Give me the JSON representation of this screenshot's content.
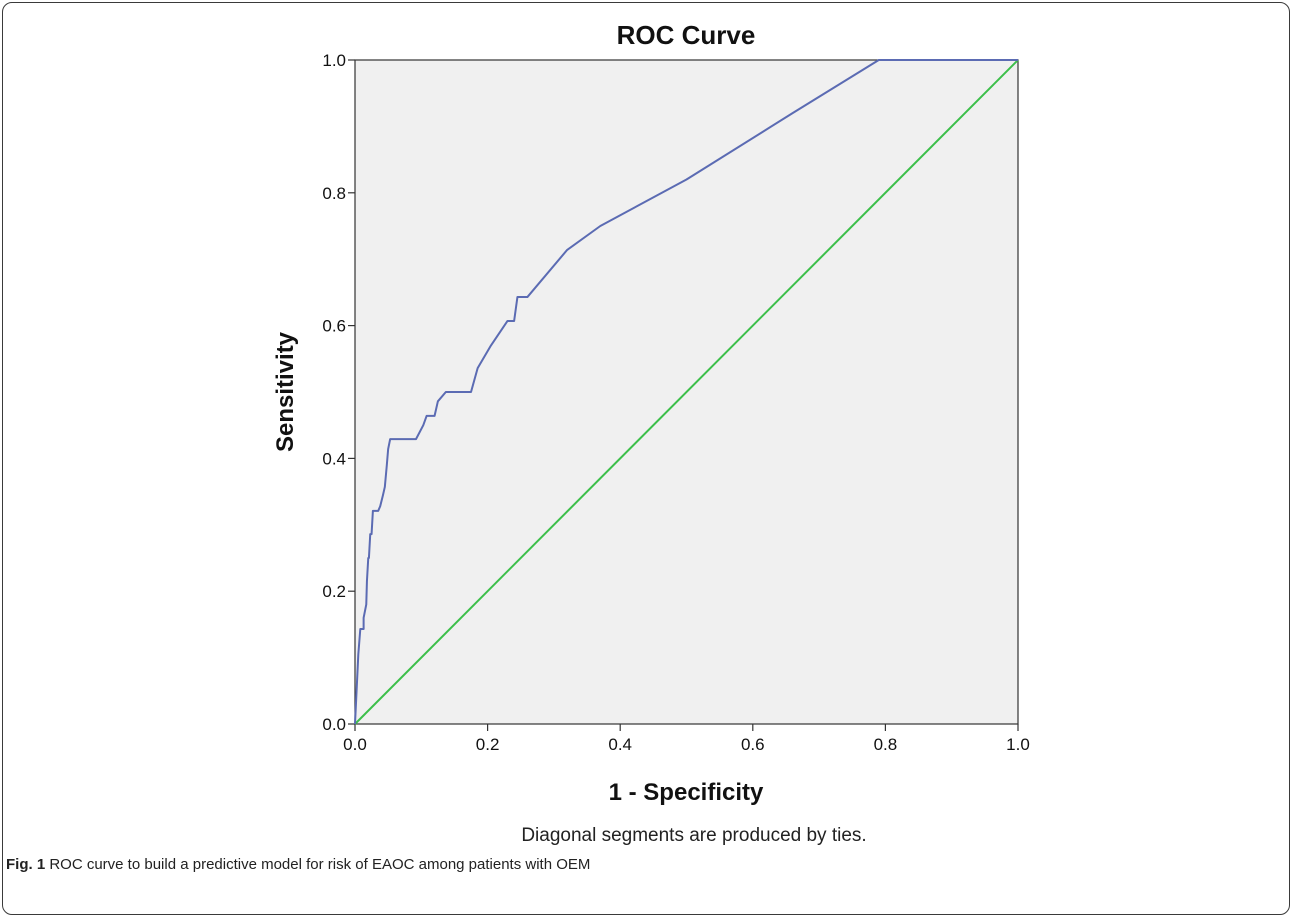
{
  "chart_data": {
    "type": "line",
    "title": "ROC Curve",
    "xlabel": "1 - Specificity",
    "ylabel": "Sensitivity",
    "xlim": [
      0,
      1
    ],
    "ylim": [
      0,
      1
    ],
    "x_ticks": [
      "0.0",
      "0.2",
      "0.4",
      "0.6",
      "0.8",
      "1.0"
    ],
    "y_ticks": [
      "0.0",
      "0.2",
      "0.4",
      "0.6",
      "0.8",
      "1.0"
    ],
    "grid": false,
    "colors": {
      "plot_bg": "#f0f0f0",
      "roc": "#5b6bb3",
      "reference": "#3cbf4a"
    },
    "series": [
      {
        "color": "#5b6bb3",
        "x": [
          0.0,
          0.005,
          0.008,
          0.013,
          0.013,
          0.017,
          0.018,
          0.02,
          0.021,
          0.023,
          0.025,
          0.027,
          0.035,
          0.038,
          0.042,
          0.045,
          0.048,
          0.05,
          0.053,
          0.075,
          0.092,
          0.103,
          0.108,
          0.113,
          0.12,
          0.125,
          0.137,
          0.16,
          0.175,
          0.185,
          0.205,
          0.23,
          0.24,
          0.245,
          0.26,
          0.32,
          0.37,
          0.5,
          0.66,
          0.79,
          1.0
        ],
        "y": [
          0.0,
          0.105,
          0.143,
          0.143,
          0.16,
          0.18,
          0.215,
          0.25,
          0.25,
          0.286,
          0.286,
          0.321,
          0.321,
          0.328,
          0.344,
          0.357,
          0.39,
          0.414,
          0.429,
          0.429,
          0.429,
          0.45,
          0.464,
          0.464,
          0.464,
          0.486,
          0.5,
          0.5,
          0.5,
          0.536,
          0.57,
          0.607,
          0.607,
          0.643,
          0.643,
          0.714,
          0.75,
          0.82,
          0.92,
          1.0,
          1.0
        ]
      },
      {
        "color": "#3cbf4a",
        "x": [
          0.0,
          1.0
        ],
        "y": [
          0.0,
          1.0
        ]
      }
    ],
    "footnote": "Diagonal segments are produced by ties."
  },
  "caption": {
    "label": "Fig. 1",
    "text": " ROC curve to build a predictive model for risk of EAOC among patients with OEM"
  }
}
